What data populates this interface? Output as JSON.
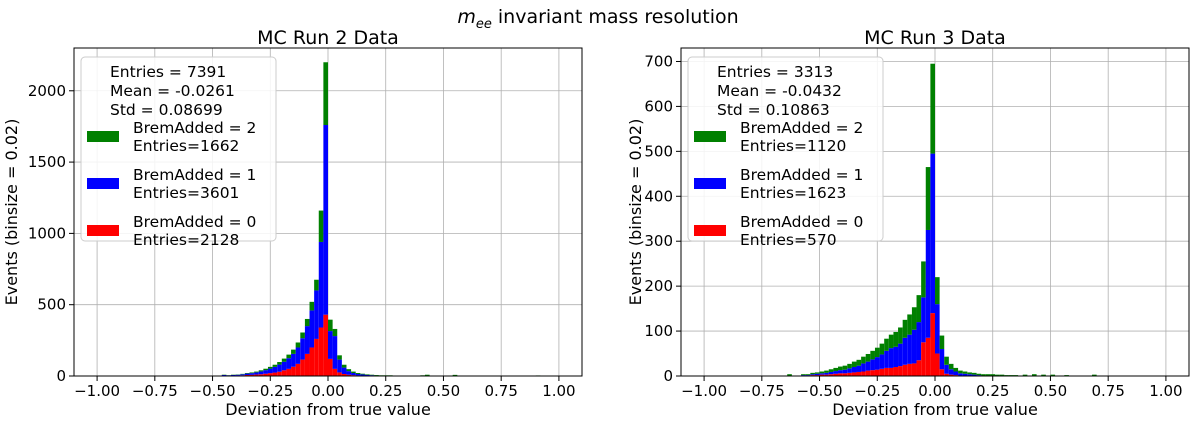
{
  "figure": {
    "suptitle_symbol": "m",
    "suptitle_subscript": "ee",
    "suptitle_rest": " invariant mass resolution"
  },
  "colors": {
    "brem2": "#008000",
    "brem1": "#0000ff",
    "brem0": "#ff0000",
    "grid": "#b0b0b0"
  },
  "chart_data": [
    {
      "type": "bar",
      "stacked": true,
      "title": "MC Run 2 Data",
      "xlabel": "Deviation from true value",
      "ylabel": "Events (binsize = 0.02)",
      "xlim": [
        -1.1,
        1.1
      ],
      "ylim": [
        0,
        2300
      ],
      "xticks": [
        -1.0,
        -0.75,
        -0.5,
        -0.25,
        0.0,
        0.25,
        0.5,
        0.75,
        1.0
      ],
      "xtick_labels": [
        "−1.00",
        "−0.75",
        "−0.50",
        "−0.25",
        "0.00",
        "0.25",
        "0.50",
        "0.75",
        "1.00"
      ],
      "yticks": [
        0,
        500,
        1000,
        1500,
        2000
      ],
      "ytick_labels": [
        "0",
        "500",
        "1000",
        "1500",
        "2000"
      ],
      "grid": true,
      "legend_position": "top-left",
      "stats": [
        "Entries = 7391",
        "Mean = -0.0261",
        "Std = 0.08699"
      ],
      "bins_center": [
        -0.45,
        -0.43,
        -0.41,
        -0.39,
        -0.37,
        -0.35,
        -0.33,
        -0.31,
        -0.29,
        -0.27,
        -0.25,
        -0.23,
        -0.21,
        -0.19,
        -0.17,
        -0.15,
        -0.13,
        -0.11,
        -0.09,
        -0.07,
        -0.05,
        -0.03,
        -0.01,
        0.01,
        0.03,
        0.05,
        0.07,
        0.09,
        0.11,
        0.13,
        0.15,
        0.17,
        0.19,
        0.21,
        0.23,
        0.25,
        0.27,
        0.29,
        0.31,
        0.33,
        0.35,
        0.41,
        0.43,
        0.55,
        0.91
      ],
      "series": [
        {
          "name": "BremAdded = 0",
          "legend_label": "BremAdded = 0",
          "entries_label": "Entries=2128",
          "color_key": "brem0",
          "values": [
            3,
            2,
            3,
            4,
            5,
            7,
            8,
            10,
            12,
            16,
            20,
            24,
            30,
            40,
            50,
            65,
            85,
            115,
            155,
            200,
            260,
            340,
            430,
            120,
            50,
            25,
            14,
            9,
            6,
            4,
            3,
            2,
            2,
            1,
            1,
            1,
            1,
            1,
            0,
            0,
            0,
            0,
            0,
            0,
            0
          ]
        },
        {
          "name": "BremAdded = 1",
          "legend_label": "BremAdded = 1",
          "entries_label": "Entries=3601",
          "color_key": "brem1",
          "values": [
            4,
            3,
            4,
            5,
            7,
            10,
            12,
            15,
            20,
            25,
            32,
            40,
            50,
            60,
            75,
            90,
            115,
            150,
            195,
            260,
            340,
            600,
            1330,
            195,
            230,
            90,
            45,
            25,
            15,
            10,
            8,
            6,
            4,
            3,
            2,
            2,
            2,
            1,
            1,
            1,
            1,
            2,
            1,
            2,
            1
          ]
        },
        {
          "name": "BremAdded = 2",
          "legend_label": "BremAdded = 2",
          "entries_label": "Entries=1662",
          "color_key": "brem2",
          "values": [
            2,
            1,
            2,
            2,
            3,
            4,
            5,
            6,
            8,
            10,
            12,
            15,
            18,
            22,
            25,
            30,
            35,
            40,
            50,
            60,
            75,
            220,
            440,
            80,
            50,
            30,
            20,
            14,
            10,
            7,
            5,
            4,
            3,
            3,
            2,
            2,
            2,
            1,
            1,
            1,
            1,
            3,
            8,
            6,
            3
          ]
        }
      ]
    },
    {
      "type": "bar",
      "stacked": true,
      "title": "MC Run 3 Data",
      "xlabel": "Deviation from true value",
      "ylabel": "Events (binsize = 0.02)",
      "xlim": [
        -1.1,
        1.1
      ],
      "ylim": [
        0,
        730
      ],
      "xticks": [
        -1.0,
        -0.75,
        -0.5,
        -0.25,
        0.0,
        0.25,
        0.5,
        0.75,
        1.0
      ],
      "xtick_labels": [
        "−1.00",
        "−0.75",
        "−0.50",
        "−0.25",
        "0.00",
        "0.25",
        "0.50",
        "0.75",
        "1.00"
      ],
      "yticks": [
        0,
        100,
        200,
        300,
        400,
        500,
        600,
        700
      ],
      "ytick_labels": [
        "0",
        "100",
        "200",
        "300",
        "400",
        "500",
        "600",
        "700"
      ],
      "grid": true,
      "legend_position": "top-left",
      "stats": [
        "Entries = 3313",
        "Mean = -0.0432",
        "Std = 0.10863"
      ],
      "bins_center": [
        -0.63,
        -0.57,
        -0.55,
        -0.53,
        -0.51,
        -0.49,
        -0.47,
        -0.45,
        -0.43,
        -0.41,
        -0.39,
        -0.37,
        -0.35,
        -0.33,
        -0.31,
        -0.29,
        -0.27,
        -0.25,
        -0.23,
        -0.21,
        -0.19,
        -0.17,
        -0.15,
        -0.13,
        -0.11,
        -0.09,
        -0.07,
        -0.05,
        -0.03,
        -0.01,
        0.01,
        0.03,
        0.05,
        0.07,
        0.09,
        0.11,
        0.13,
        0.15,
        0.17,
        0.19,
        0.21,
        0.23,
        0.25,
        0.27,
        0.29,
        0.31,
        0.33,
        0.35,
        0.39,
        0.43,
        0.47,
        0.51,
        0.57,
        0.69
      ],
      "series": [
        {
          "name": "BremAdded = 0",
          "legend_label": "BremAdded = 0",
          "entries_label": "Entries=570",
          "color_key": "brem0",
          "values": [
            0,
            1,
            1,
            2,
            2,
            3,
            3,
            4,
            5,
            6,
            6,
            7,
            8,
            9,
            10,
            12,
            13,
            14,
            16,
            18,
            18,
            20,
            22,
            25,
            27,
            28,
            35,
            75,
            85,
            140,
            50,
            15,
            5,
            3,
            2,
            1,
            1,
            1,
            1,
            0,
            0,
            0,
            0,
            0,
            0,
            0,
            0,
            0,
            0,
            0,
            0,
            0,
            0,
            0
          ]
        },
        {
          "name": "BremAdded = 1",
          "legend_label": "BremAdded = 1",
          "entries_label": "Entries=1623",
          "color_key": "brem1",
          "values": [
            1,
            1,
            1,
            2,
            3,
            3,
            4,
            5,
            6,
            7,
            8,
            10,
            12,
            14,
            18,
            20,
            24,
            28,
            32,
            38,
            44,
            45,
            50,
            60,
            65,
            75,
            85,
            100,
            240,
            355,
            110,
            45,
            20,
            12,
            8,
            5,
            4,
            3,
            2,
            2,
            1,
            1,
            1,
            1,
            1,
            0,
            0,
            0,
            0,
            0,
            0,
            0,
            0,
            0
          ]
        },
        {
          "name": "BremAdded = 2",
          "legend_label": "BremAdded = 2",
          "entries_label": "Entries=1120",
          "color_key": "brem2",
          "values": [
            3,
            2,
            2,
            3,
            3,
            4,
            5,
            6,
            7,
            8,
            9,
            10,
            12,
            13,
            15,
            17,
            19,
            21,
            24,
            27,
            30,
            33,
            36,
            40,
            45,
            50,
            60,
            80,
            140,
            200,
            60,
            30,
            18,
            12,
            8,
            6,
            5,
            4,
            4,
            3,
            3,
            3,
            3,
            2,
            2,
            2,
            2,
            2,
            3,
            4,
            3,
            3,
            2,
            3
          ]
        }
      ]
    }
  ]
}
